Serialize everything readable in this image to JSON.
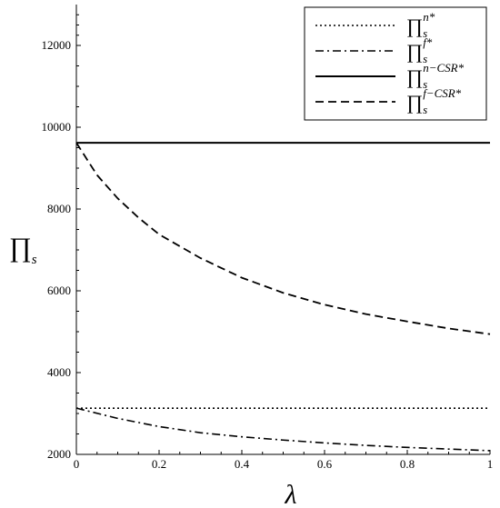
{
  "chart_data": {
    "type": "line",
    "title": "",
    "xlabel": "λ",
    "ylabel": {
      "symbol": "∏",
      "sub": "s"
    },
    "xlim": [
      0,
      1
    ],
    "ylim": [
      2000,
      13000
    ],
    "x_ticks": [
      0,
      0.2,
      0.4,
      0.6,
      0.8,
      1
    ],
    "x_tick_labels": [
      "0",
      "0.2",
      "0.4",
      "0.6",
      "0.8",
      "1"
    ],
    "y_ticks": [
      2000,
      4000,
      6000,
      8000,
      10000,
      12000
    ],
    "y_tick_labels": [
      "2000",
      "4000",
      "6000",
      "8000",
      "10000",
      "12000"
    ],
    "grid": false,
    "legend_position": "top-right",
    "series": [
      {
        "legend": {
          "symbol": "∏",
          "sub": "s",
          "sup": "n*"
        },
        "style": "dotted",
        "x": [
          0,
          1
        ],
        "y": [
          3130,
          3130
        ]
      },
      {
        "legend": {
          "symbol": "∏",
          "sub": "s",
          "sup": "f*"
        },
        "style": "dashdot",
        "x": [
          0,
          0.1,
          0.2,
          0.3,
          0.4,
          0.5,
          0.6,
          0.7,
          0.8,
          0.9,
          1.0
        ],
        "y": [
          3130,
          2880,
          2680,
          2530,
          2430,
          2350,
          2280,
          2220,
          2170,
          2130,
          2090
        ]
      },
      {
        "legend": {
          "symbol": "∏",
          "sub": "s",
          "sup": "n−CSR*"
        },
        "style": "solid",
        "x": [
          0,
          1
        ],
        "y": [
          9620,
          9620
        ]
      },
      {
        "legend": {
          "symbol": "∏",
          "sub": "s",
          "sup": "f−CSR*"
        },
        "style": "dashed",
        "x": [
          0,
          0.05,
          0.1,
          0.15,
          0.2,
          0.3,
          0.4,
          0.5,
          0.6,
          0.7,
          0.8,
          0.9,
          1.0
        ],
        "y": [
          9620,
          8830,
          8260,
          7790,
          7380,
          6800,
          6320,
          5950,
          5660,
          5430,
          5250,
          5080,
          4940
        ]
      }
    ]
  }
}
